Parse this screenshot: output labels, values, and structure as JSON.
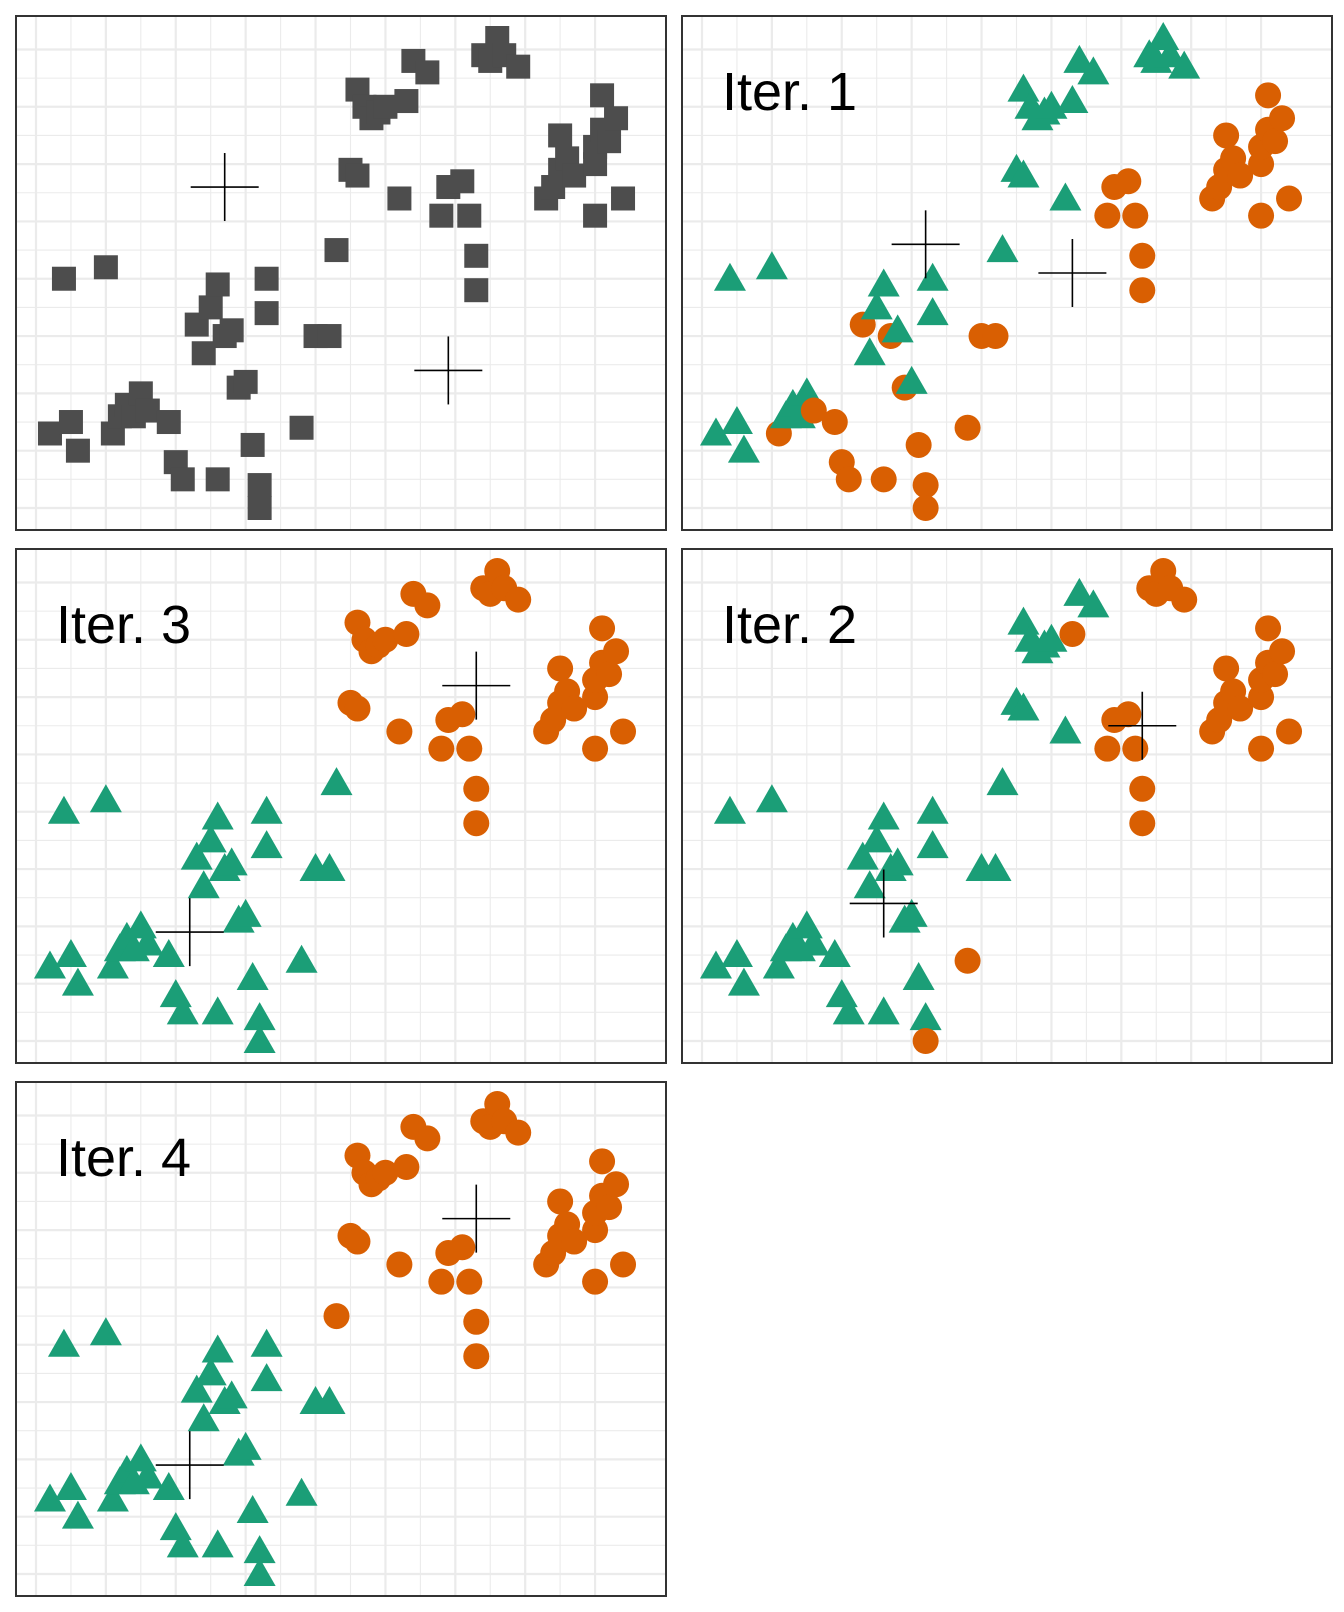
{
  "chart_data": {
    "type": "scatter",
    "title": "",
    "xlabel": "",
    "ylabel": "",
    "xlim": [
      0,
      8.7
    ],
    "ylim": [
      0,
      8.2
    ],
    "grid": true,
    "ticks_labeled": false,
    "colors": {
      "unassigned": "#4D4D4D",
      "cluster_1": "#1B9E77",
      "cluster_2": "#D95F02",
      "centroid": "#000000",
      "grid": "#EBEBEB",
      "frame": "#333333"
    },
    "marker_shapes": {
      "unassigned": "square",
      "cluster_1": "triangle",
      "cluster_2": "circle",
      "centroid": "cross"
    },
    "points": [
      [
        0.2,
        1.3
      ],
      [
        0.5,
        1.5
      ],
      [
        0.4,
        4.0
      ],
      [
        0.6,
        1.0
      ],
      [
        1.0,
        4.2
      ],
      [
        1.1,
        1.3
      ],
      [
        1.2,
        1.6
      ],
      [
        1.3,
        1.8
      ],
      [
        1.4,
        1.6
      ],
      [
        1.5,
        2.0
      ],
      [
        1.6,
        1.7
      ],
      [
        1.9,
        1.5
      ],
      [
        2.0,
        0.8
      ],
      [
        2.1,
        0.5
      ],
      [
        2.3,
        3.2
      ],
      [
        2.4,
        2.7
      ],
      [
        2.5,
        3.5
      ],
      [
        2.6,
        3.9
      ],
      [
        2.6,
        0.5
      ],
      [
        2.7,
        3.0
      ],
      [
        2.8,
        3.1
      ],
      [
        2.9,
        2.1
      ],
      [
        3.0,
        2.2
      ],
      [
        3.1,
        1.1
      ],
      [
        3.2,
        0.4
      ],
      [
        3.3,
        3.4
      ],
      [
        3.3,
        4.0
      ],
      [
        3.2,
        0.0
      ],
      [
        3.8,
        1.4
      ],
      [
        4.0,
        3.0
      ],
      [
        4.2,
        3.0
      ],
      [
        4.3,
        4.5
      ],
      [
        4.5,
        5.9
      ],
      [
        4.6,
        5.8
      ],
      [
        4.6,
        7.3
      ],
      [
        4.7,
        7.0
      ],
      [
        4.8,
        6.8
      ],
      [
        4.9,
        6.9
      ],
      [
        5.0,
        7.0
      ],
      [
        5.2,
        5.4
      ],
      [
        5.3,
        7.1
      ],
      [
        5.4,
        7.8
      ],
      [
        5.6,
        7.6
      ],
      [
        5.8,
        5.1
      ],
      [
        5.9,
        5.6
      ],
      [
        6.1,
        5.7
      ],
      [
        6.2,
        5.1
      ],
      [
        6.3,
        4.4
      ],
      [
        6.3,
        3.8
      ],
      [
        6.4,
        7.9
      ],
      [
        6.5,
        7.8
      ],
      [
        6.6,
        8.2
      ],
      [
        6.7,
        7.9
      ],
      [
        6.9,
        7.7
      ],
      [
        7.3,
        5.4
      ],
      [
        7.4,
        5.6
      ],
      [
        7.5,
        6.5
      ],
      [
        7.5,
        5.9
      ],
      [
        7.6,
        6.1
      ],
      [
        7.7,
        5.8
      ],
      [
        8.0,
        5.1
      ],
      [
        8.0,
        6.0
      ],
      [
        8.0,
        6.3
      ],
      [
        8.1,
        6.6
      ],
      [
        8.1,
        7.2
      ],
      [
        8.2,
        6.4
      ],
      [
        8.3,
        6.8
      ],
      [
        8.4,
        5.4
      ]
    ],
    "panels": [
      {
        "label": "",
        "assignments": "none",
        "centroids": [
          [
            2.7,
            5.6
          ],
          [
            5.9,
            2.4
          ]
        ]
      },
      {
        "label": "Iter. 1",
        "assignments": [
          1,
          1,
          1,
          1,
          1,
          2,
          1,
          1,
          1,
          1,
          2,
          2,
          2,
          2,
          2,
          1,
          1,
          1,
          2,
          2,
          1,
          2,
          1,
          2,
          2,
          1,
          1,
          2,
          2,
          2,
          2,
          1,
          1,
          1,
          1,
          1,
          1,
          1,
          1,
          1,
          1,
          1,
          1,
          2,
          2,
          2,
          2,
          2,
          2,
          1,
          1,
          1,
          1,
          1,
          2,
          2,
          2,
          2,
          2,
          2,
          2,
          2,
          2,
          2,
          2,
          2,
          2,
          2
        ],
        "centroids": [
          [
            3.2,
            4.6
          ],
          [
            5.3,
            4.1
          ]
        ]
      },
      {
        "label": "Iter. 2",
        "assignments": [
          1,
          1,
          1,
          1,
          1,
          1,
          1,
          1,
          1,
          1,
          1,
          1,
          1,
          1,
          1,
          1,
          1,
          1,
          1,
          1,
          1,
          1,
          1,
          1,
          1,
          1,
          1,
          2,
          2,
          1,
          1,
          1,
          1,
          1,
          1,
          1,
          1,
          1,
          1,
          1,
          2,
          1,
          1,
          2,
          2,
          2,
          2,
          2,
          2,
          2,
          2,
          2,
          2,
          2,
          2,
          2,
          2,
          2,
          2,
          2,
          2,
          2,
          2,
          2,
          2,
          2,
          2,
          2
        ],
        "centroids": [
          [
            2.6,
            2.4
          ],
          [
            6.3,
            5.5
          ]
        ]
      },
      {
        "label": "Iter. 3",
        "assignments": [
          1,
          1,
          1,
          1,
          1,
          1,
          1,
          1,
          1,
          1,
          1,
          1,
          1,
          1,
          1,
          1,
          1,
          1,
          1,
          1,
          1,
          1,
          1,
          1,
          1,
          1,
          1,
          1,
          1,
          1,
          1,
          1,
          2,
          2,
          2,
          2,
          2,
          2,
          2,
          2,
          2,
          2,
          2,
          2,
          2,
          2,
          2,
          2,
          2,
          2,
          2,
          2,
          2,
          2,
          2,
          2,
          2,
          2,
          2,
          2,
          2,
          2,
          2,
          2,
          2,
          2,
          2,
          2
        ],
        "centroids": [
          [
            2.2,
            1.9
          ],
          [
            6.3,
            6.2
          ]
        ]
      },
      {
        "label": "Iter. 4",
        "assignments": [
          1,
          1,
          1,
          1,
          1,
          1,
          1,
          1,
          1,
          1,
          1,
          1,
          1,
          1,
          1,
          1,
          1,
          1,
          1,
          1,
          1,
          1,
          1,
          1,
          1,
          1,
          1,
          1,
          1,
          1,
          1,
          2,
          2,
          2,
          2,
          2,
          2,
          2,
          2,
          2,
          2,
          2,
          2,
          2,
          2,
          2,
          2,
          2,
          2,
          2,
          2,
          2,
          2,
          2,
          2,
          2,
          2,
          2,
          2,
          2,
          2,
          2,
          2,
          2,
          2,
          2,
          2,
          2
        ],
        "centroids": [
          [
            2.2,
            1.9
          ],
          [
            6.3,
            6.2
          ]
        ]
      }
    ]
  }
}
